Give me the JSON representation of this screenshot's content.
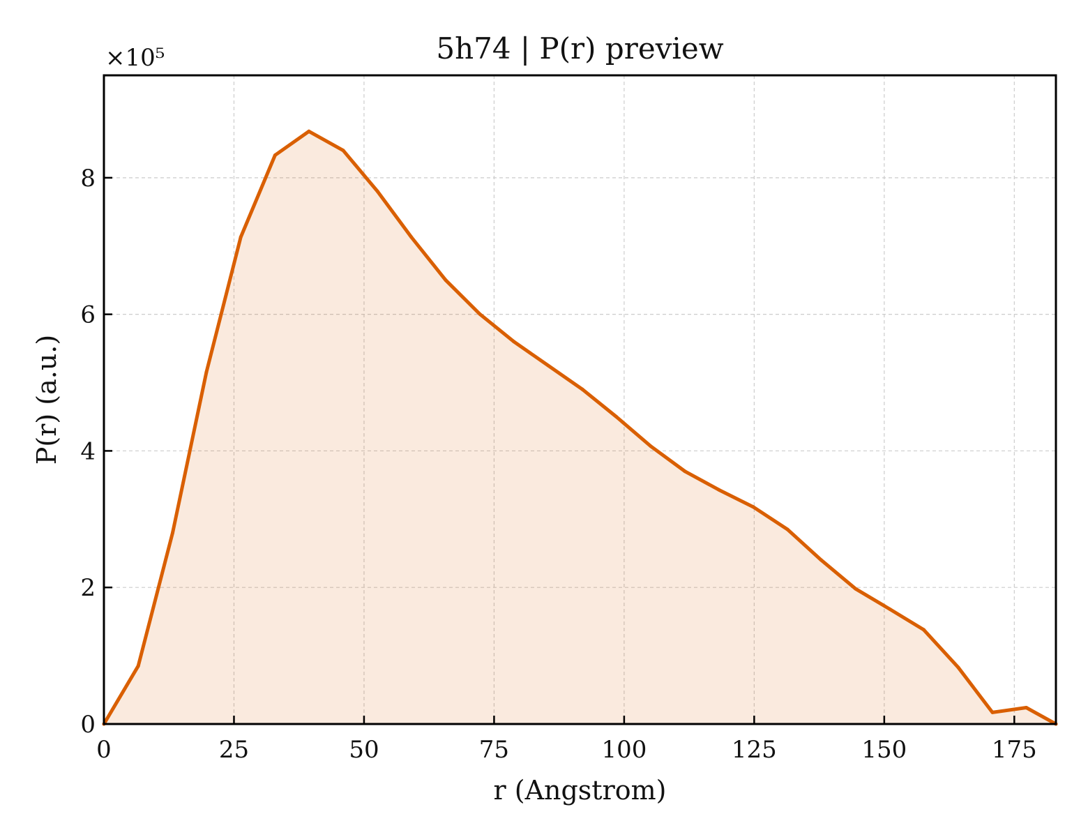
{
  "chart_data": {
    "type": "area",
    "title": "5h74 | P(r) preview",
    "xlabel": "r (Angstrom)",
    "ylabel": "P(r) (a.u.)",
    "y_multiplier_label": "×10⁵",
    "y_scale_factor": 100000,
    "xlim": [
      0,
      183
    ],
    "ylim": [
      0,
      950000
    ],
    "x_ticks": [
      0,
      25,
      50,
      75,
      100,
      125,
      150,
      175
    ],
    "x_tick_labels": [
      "0",
      "25",
      "50",
      "75",
      "100",
      "125",
      "150",
      "175"
    ],
    "y_ticks": [
      0,
      200000,
      400000,
      600000,
      800000
    ],
    "y_tick_labels": [
      "0",
      "2",
      "4",
      "6",
      "8"
    ],
    "grid": true,
    "legend": "none",
    "series": [
      {
        "color": "#d95f02",
        "fill_color": "#d95f02",
        "fill_opacity": 0.13,
        "x": [
          0,
          6.6,
          13.2,
          19.7,
          26.3,
          32.9,
          39.4,
          46.0,
          52.6,
          59.1,
          65.7,
          72.3,
          78.8,
          85.4,
          92.0,
          98.5,
          105.1,
          111.7,
          118.2,
          124.8,
          131.4,
          137.9,
          144.5,
          151.1,
          157.6,
          164.2,
          170.8,
          177.3,
          183.0
        ],
        "y": [
          0,
          85000,
          280000,
          515000,
          713000,
          833000,
          868000,
          840000,
          780000,
          713000,
          650000,
          600000,
          560000,
          525000,
          490000,
          450000,
          407000,
          370000,
          343000,
          318000,
          285000,
          240000,
          198000,
          168000,
          138000,
          83000,
          17000,
          24000,
          0
        ]
      }
    ]
  }
}
